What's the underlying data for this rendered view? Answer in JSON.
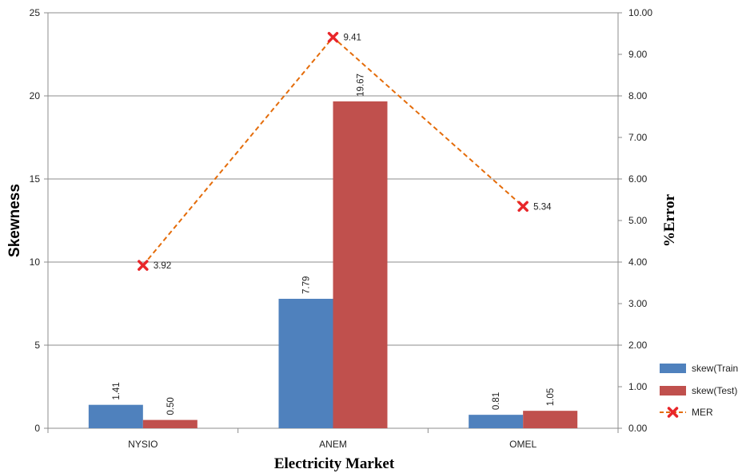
{
  "chart_data": {
    "type": "bar",
    "categories": [
      "NYSIO",
      "ANEM",
      "OMEL"
    ],
    "xlabel": "Electricity Market",
    "ylabel": "Skewness",
    "y2label": "%Error",
    "ylim": [
      0,
      25
    ],
    "y2lim": [
      0,
      10
    ],
    "yticks": [
      "0",
      "5",
      "10",
      "15",
      "20",
      "25"
    ],
    "y2ticks": [
      "0.00",
      "1.00",
      "2.00",
      "3.00",
      "4.00",
      "5.00",
      "6.00",
      "7.00",
      "8.00",
      "9.00",
      "10.00"
    ],
    "grid": true,
    "legend_position": "right",
    "series": [
      {
        "name": "skew(Train",
        "type": "bar",
        "axis": "left",
        "color": "#4F81BD",
        "values": [
          1.41,
          7.79,
          0.81
        ],
        "labels": [
          "1.41",
          "7.79",
          "0.81"
        ]
      },
      {
        "name": "skew(Test)",
        "type": "bar",
        "axis": "left",
        "color": "#C0504D",
        "values": [
          0.5,
          19.67,
          1.05
        ],
        "labels": [
          "0.50",
          "19.67",
          "1.05"
        ]
      },
      {
        "name": "MER",
        "type": "line",
        "axis": "right",
        "color": "#E46C0A",
        "marker_color": "#E8262A",
        "values": [
          3.92,
          9.41,
          5.34
        ],
        "labels": [
          "3.92",
          "9.41",
          "5.34"
        ]
      }
    ]
  }
}
